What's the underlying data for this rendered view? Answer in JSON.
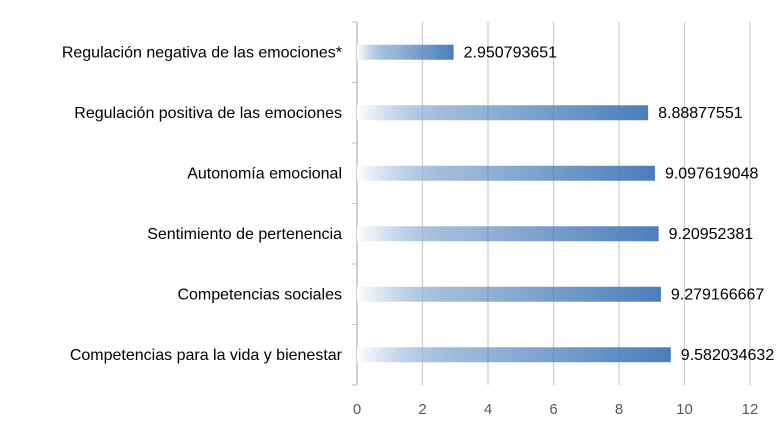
{
  "chart_data": {
    "type": "bar",
    "orientation": "horizontal",
    "categories": [
      "Regulación negativa de las emociones*",
      "Regulación positiva de las emociones",
      "Autonomía emocional",
      "Sentimiento de pertenencia",
      "Competencias sociales",
      "Competencias para la vida y bienestar"
    ],
    "values": [
      2.950793651,
      8.88877551,
      9.097619048,
      9.20952381,
      9.279166667,
      9.582034632
    ],
    "color": "#4a7ebb",
    "gradient": true,
    "xlim": [
      0,
      12
    ],
    "xticks": [
      0,
      2,
      4,
      6,
      8,
      10,
      12
    ],
    "grid": true
  }
}
